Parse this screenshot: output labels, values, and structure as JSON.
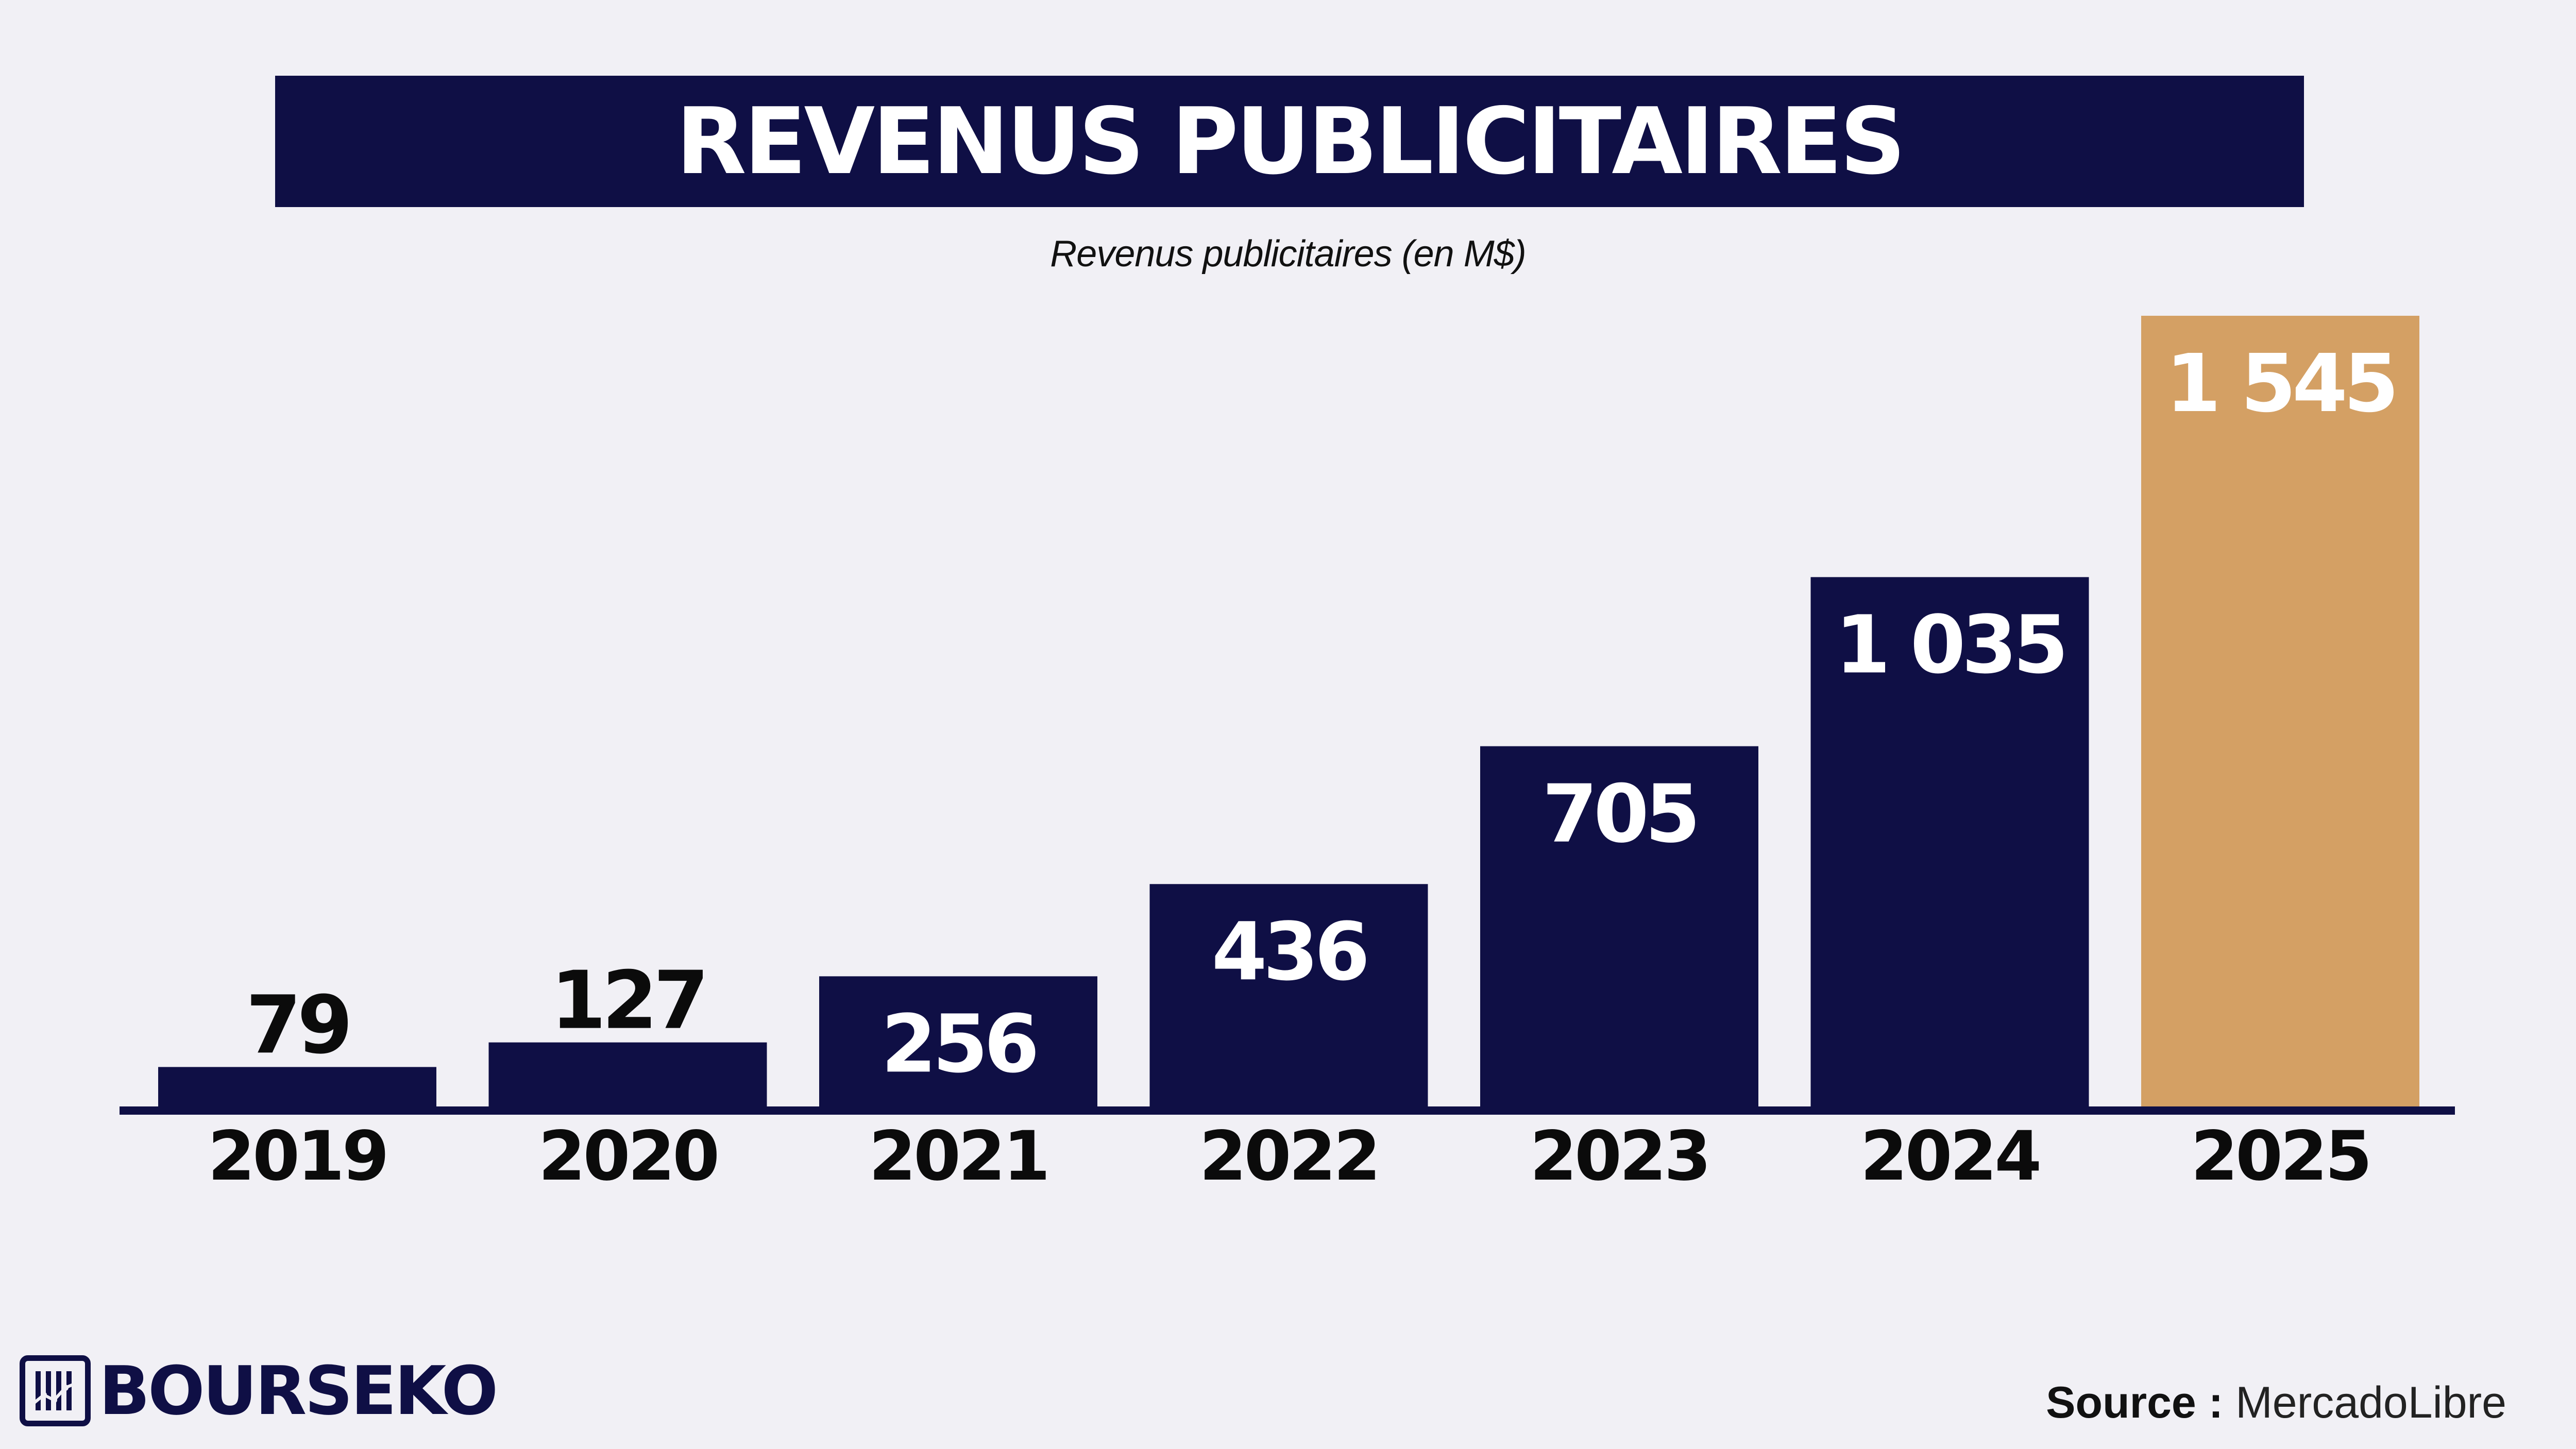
{
  "header": {
    "title": "REVENUS PUBLICITAIRES",
    "subtitle": "Revenus publicitaires (en M$)"
  },
  "chart_data": {
    "type": "bar",
    "title": "REVENUS PUBLICITAIRES",
    "subtitle": "Revenus publicitaires (en M$)",
    "categories": [
      "2019",
      "2020",
      "2021",
      "2022",
      "2023",
      "2024",
      "2025"
    ],
    "values": [
      79,
      127,
      256,
      436,
      705,
      1035,
      1545
    ],
    "value_labels": [
      "79",
      "127",
      "256",
      "436",
      "705",
      "1 035",
      "1 545"
    ],
    "xlabel": "",
    "ylabel": "",
    "ylim": [
      0,
      1545
    ],
    "grid": false,
    "highlight_index": 6,
    "colors": {
      "bar": "#0f0f45",
      "highlight": "#d4a064",
      "axis": "#0f0f45",
      "label_inside": "#ffffff",
      "label_outside": "#0b0b0b"
    }
  },
  "footer": {
    "brand": "BOURSEKO",
    "source_label": "Source :",
    "source_value": "MercadoLibre"
  }
}
